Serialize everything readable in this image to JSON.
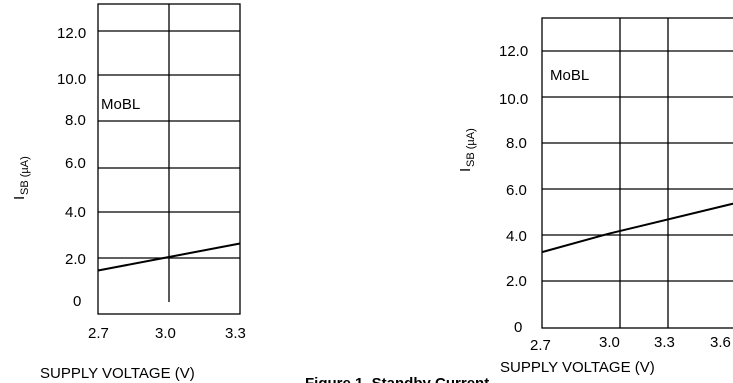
{
  "chart_data": [
    {
      "type": "line",
      "title": "",
      "annotation": "MoBL",
      "xlabel": "SUPPLY VOLTAGE (V)",
      "ylabel_main": "I",
      "ylabel_sub": "SB (µA)",
      "x_ticks": [
        "2.7",
        "3.0",
        "3.3"
      ],
      "y_ticks": [
        "0",
        "2.0",
        "4.0",
        "6.0",
        "8.0",
        "10.0",
        "12.0"
      ],
      "xlim": [
        2.7,
        3.3
      ],
      "ylim": [
        0,
        12.0
      ],
      "grid": true,
      "series": [
        {
          "x": [
            2.7,
            3.0,
            3.3
          ],
          "y": [
            1.4,
            2.0,
            2.6
          ]
        }
      ]
    },
    {
      "type": "line",
      "title": "",
      "annotation": "MoBL",
      "xlabel": "SUPPLY VOLTAGE (V)",
      "ylabel_main": "I",
      "ylabel_sub": "SB (µA)",
      "x_ticks": [
        "2.7",
        "3.0",
        "3.3",
        "3.6"
      ],
      "y_ticks": [
        "0",
        "2.0",
        "4.0",
        "6.0",
        "8.0",
        "10.0",
        "12.0"
      ],
      "xlim": [
        2.7,
        3.6
      ],
      "ylim": [
        0,
        12.0
      ],
      "grid": true,
      "series": [
        {
          "x": [
            2.7,
            3.0,
            3.6
          ],
          "y": [
            3.3,
            4.1,
            5.5
          ]
        }
      ]
    }
  ],
  "footer_caption": "Figure 1. Standby Current"
}
